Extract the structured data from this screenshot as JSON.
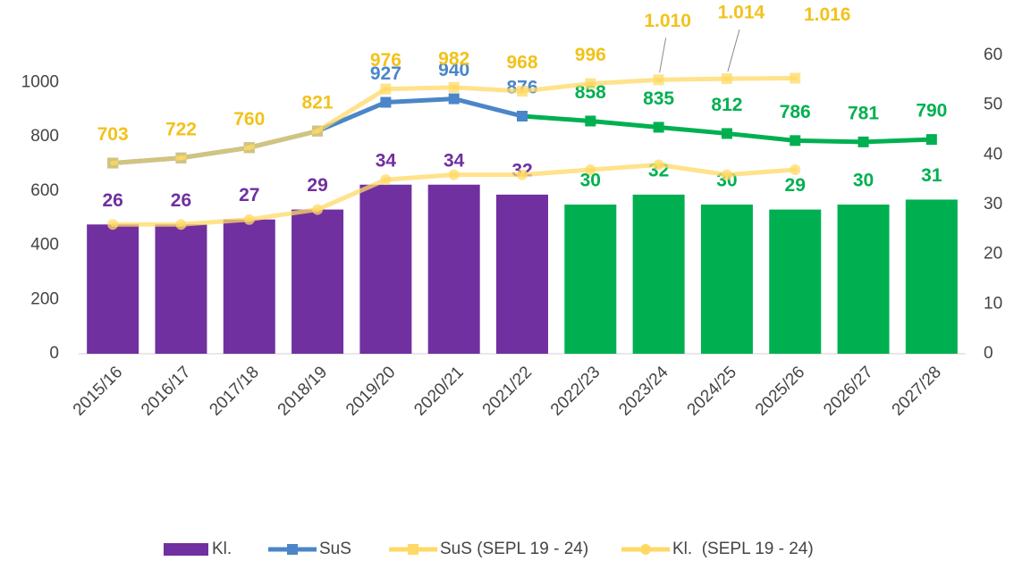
{
  "chart_data": {
    "type": "combo",
    "categories": [
      "2015/16",
      "2016/17",
      "2017/18",
      "2018/19",
      "2019/20",
      "2020/21",
      "2021/22",
      "2022/23",
      "2023/24",
      "2024/25",
      "2025/26",
      "2026/27",
      "2027/28"
    ],
    "ylim": [
      0,
      1100
    ],
    "yticks": [
      0,
      200,
      400,
      600,
      800,
      1000
    ],
    "y2lim": [
      0,
      60
    ],
    "y2ticks": [
      0,
      10,
      20,
      30,
      40,
      50,
      60
    ],
    "series": [
      {
        "name": "Kl.",
        "type": "bar",
        "axis": "y2",
        "color": "#7030a0",
        "colors": [
          "#7030a0",
          "#7030a0",
          "#7030a0",
          "#7030a0",
          "#7030a0",
          "#7030a0",
          "#7030a0",
          "#00b050",
          "#00b050",
          "#00b050",
          "#00b050",
          "#00b050",
          "#00b050"
        ],
        "values": [
          26,
          26,
          27,
          29,
          34,
          34,
          32,
          30,
          32,
          30,
          29,
          30,
          31
        ]
      },
      {
        "name": "SuS",
        "type": "line",
        "marker": "square",
        "color": "#4a86c8",
        "colors": [
          "#4a86c8",
          "#4a86c8",
          "#4a86c8",
          "#4a86c8",
          "#4a86c8",
          "#4a86c8",
          "#4a86c8",
          "#00b050",
          "#00b050",
          "#00b050",
          "#00b050",
          "#00b050",
          "#00b050"
        ],
        "values": [
          703,
          722,
          760,
          821,
          927,
          940,
          876,
          858,
          835,
          812,
          786,
          781,
          790
        ],
        "value_labels": [
          null,
          null,
          null,
          null,
          "927",
          "940",
          "876",
          "858",
          "835",
          "812",
          "786",
          "781",
          "790"
        ]
      },
      {
        "name": "SuS (SEPL 19 - 24)",
        "type": "line",
        "marker": "square",
        "color": "#ffd966",
        "label_color": "#f2c21b",
        "values": [
          703,
          722,
          760,
          821,
          976,
          982,
          968,
          996,
          1010,
          1014,
          1016,
          null,
          null
        ],
        "value_labels": [
          "703",
          "722",
          "760",
          "821",
          "976",
          "982",
          "968",
          "996",
          "1.010",
          "1.014",
          "1.016",
          null,
          null
        ]
      },
      {
        "name": "Kl.  (SEPL 19 - 24)",
        "type": "line",
        "marker": "circle",
        "axis": "y2",
        "color": "#ffd966",
        "values": [
          26,
          26,
          27,
          29,
          35,
          36,
          36,
          37,
          38,
          36,
          37,
          null,
          null
        ]
      }
    ]
  }
}
